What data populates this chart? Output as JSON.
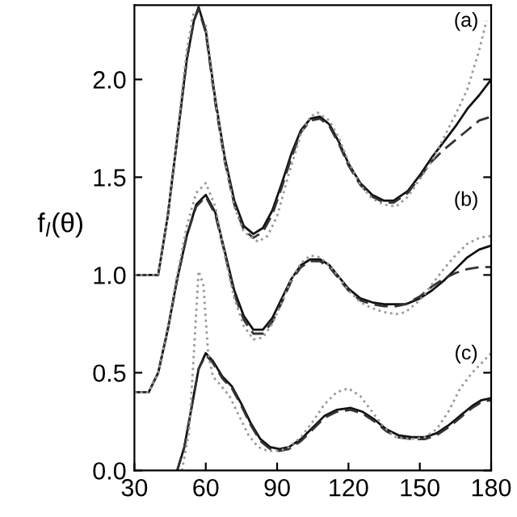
{
  "chart_data": {
    "type": "line",
    "ylabel": "f$_{l}$(θ)",
    "xlim": [
      30,
      180
    ],
    "xticks": [
      30,
      60,
      90,
      120,
      150,
      180
    ],
    "ylim": [
      0,
      2.38
    ],
    "yticks": [
      {
        "value": 0,
        "label": "0.0"
      },
      0.5,
      {
        "value": 1,
        "label": "1.0"
      },
      1.5,
      {
        "value": 2,
        "label": "2.0"
      }
    ],
    "grid": false,
    "legend": false,
    "marker": "none",
    "series": [
      {
        "color": "#111111",
        "line_style": "solid",
        "x": [
          30,
          40,
          44,
          48,
          52,
          55,
          57,
          60,
          64,
          68,
          72,
          76,
          80,
          84,
          88,
          92,
          96,
          100,
          104,
          108,
          112,
          116,
          120,
          125,
          130,
          135,
          139,
          145,
          150,
          155,
          160,
          165,
          170,
          175,
          180
        ],
        "values": [
          1.0,
          1.0,
          1.3,
          1.7,
          2.1,
          2.3,
          2.37,
          2.25,
          1.9,
          1.6,
          1.38,
          1.25,
          1.21,
          1.24,
          1.33,
          1.47,
          1.62,
          1.74,
          1.8,
          1.81,
          1.77,
          1.68,
          1.57,
          1.47,
          1.41,
          1.38,
          1.38,
          1.43,
          1.51,
          1.6,
          1.68,
          1.76,
          1.85,
          1.92,
          2.0
        ]
      },
      {
        "color": "#333333",
        "line_style": "dashed",
        "x": [
          30,
          40,
          44,
          48,
          52,
          55,
          57,
          60,
          64,
          68,
          72,
          76,
          80,
          84,
          88,
          92,
          96,
          100,
          104,
          108,
          112,
          116,
          120,
          125,
          130,
          135,
          139,
          145,
          150,
          155,
          160,
          165,
          170,
          175,
          180
        ],
        "values": [
          1.0,
          1.0,
          1.3,
          1.7,
          2.1,
          2.3,
          2.36,
          2.24,
          1.88,
          1.58,
          1.36,
          1.23,
          1.19,
          1.22,
          1.31,
          1.45,
          1.6,
          1.73,
          1.79,
          1.8,
          1.76,
          1.67,
          1.56,
          1.46,
          1.4,
          1.37,
          1.37,
          1.42,
          1.5,
          1.58,
          1.64,
          1.69,
          1.74,
          1.79,
          1.81
        ]
      },
      {
        "color": "#999999",
        "line_style": "dotted",
        "x": [
          30,
          40,
          44,
          48,
          52,
          55,
          57,
          60,
          64,
          68,
          72,
          76,
          82,
          86,
          90,
          95,
          100,
          104,
          107,
          112,
          116,
          120,
          125,
          130,
          135,
          140,
          145,
          150,
          155,
          160,
          165,
          170,
          175,
          178
        ],
        "values": [
          1.0,
          1.0,
          1.3,
          1.72,
          2.15,
          2.35,
          null,
          2.28,
          1.9,
          1.58,
          1.35,
          1.22,
          1.17,
          1.2,
          1.3,
          1.52,
          1.72,
          1.81,
          1.83,
          1.79,
          1.7,
          1.58,
          1.46,
          1.39,
          1.36,
          1.35,
          1.4,
          1.49,
          1.58,
          1.7,
          1.82,
          1.95,
          2.15,
          2.3
        ]
      },
      {
        "color": "#111111",
        "line_style": "solid",
        "x": [
          30,
          36,
          40,
          44,
          48,
          52,
          56,
          60,
          64,
          68,
          72,
          76,
          80,
          84,
          88,
          92,
          96,
          100,
          104,
          108,
          112,
          116,
          120,
          125,
          130,
          135,
          140,
          144,
          150,
          155,
          160,
          165,
          170,
          175,
          180
        ],
        "values": [
          0.4,
          0.4,
          0.5,
          0.72,
          0.98,
          1.2,
          1.36,
          1.41,
          1.32,
          1.12,
          0.92,
          0.79,
          0.72,
          0.72,
          0.78,
          0.88,
          0.98,
          1.05,
          1.08,
          1.08,
          1.05,
          0.99,
          0.93,
          0.88,
          0.86,
          0.85,
          0.85,
          0.85,
          0.88,
          0.92,
          0.97,
          1.03,
          1.09,
          1.13,
          1.15
        ]
      },
      {
        "color": "#333333",
        "line_style": "dashed",
        "x": [
          30,
          36,
          40,
          44,
          48,
          52,
          56,
          60,
          64,
          68,
          72,
          76,
          80,
          84,
          88,
          92,
          96,
          100,
          104,
          108,
          112,
          116,
          120,
          125,
          130,
          135,
          140,
          144,
          150,
          155,
          160,
          165,
          170,
          175,
          180
        ],
        "values": [
          0.4,
          0.4,
          0.5,
          0.72,
          0.98,
          1.2,
          1.35,
          1.4,
          1.31,
          1.11,
          0.9,
          0.77,
          0.7,
          0.7,
          0.76,
          0.86,
          0.97,
          1.04,
          1.07,
          1.07,
          1.04,
          0.98,
          0.92,
          0.87,
          0.85,
          0.84,
          0.84,
          0.85,
          0.89,
          0.94,
          0.98,
          1.01,
          1.03,
          1.04,
          1.04
        ]
      },
      {
        "color": "#999999",
        "line_style": "dotted",
        "x": [
          30,
          36,
          40,
          44,
          48,
          52,
          56,
          60,
          64,
          68,
          72,
          76,
          80,
          84,
          88,
          92,
          96,
          100,
          104,
          108,
          112,
          116,
          120,
          125,
          130,
          135,
          140,
          144,
          150,
          155,
          160,
          165,
          170,
          175,
          180
        ],
        "values": [
          0.4,
          0.4,
          0.5,
          0.73,
          1.0,
          1.25,
          1.42,
          1.47,
          1.35,
          1.1,
          0.88,
          0.74,
          0.67,
          0.68,
          0.75,
          0.86,
          0.98,
          1.06,
          1.1,
          1.09,
          1.05,
          0.99,
          0.92,
          0.86,
          0.83,
          0.81,
          0.8,
          0.81,
          0.87,
          0.95,
          1.03,
          1.1,
          1.16,
          1.19,
          1.2
        ]
      },
      {
        "color": "#111111",
        "line_style": "solid",
        "x": [
          48,
          51,
          54,
          57,
          60,
          63,
          67,
          71,
          75,
          79,
          83,
          87,
          91,
          95,
          100,
          105,
          110,
          115,
          121,
          126,
          131,
          136,
          141,
          147,
          152,
          157,
          162,
          167,
          172,
          176,
          180
        ],
        "values": [
          0.0,
          0.12,
          0.32,
          0.52,
          0.6,
          0.56,
          0.48,
          0.43,
          0.34,
          0.24,
          0.16,
          0.12,
          0.11,
          0.12,
          0.16,
          0.22,
          0.28,
          0.31,
          0.32,
          0.3,
          0.26,
          0.21,
          0.18,
          0.17,
          0.17,
          0.19,
          0.23,
          0.28,
          0.33,
          0.36,
          0.37
        ]
      },
      {
        "color": "#333333",
        "line_style": "dashed",
        "x": [
          48,
          51,
          54,
          57,
          60,
          63,
          67,
          71,
          75,
          79,
          83,
          87,
          91,
          95,
          100,
          105,
          110,
          115,
          121,
          126,
          131,
          136,
          141,
          147,
          152,
          157,
          162,
          167,
          172,
          176,
          180
        ],
        "values": [
          0.0,
          0.12,
          0.32,
          0.52,
          0.59,
          0.55,
          0.47,
          0.42,
          0.33,
          0.23,
          0.15,
          0.11,
          0.1,
          0.11,
          0.15,
          0.21,
          0.27,
          0.3,
          0.31,
          0.29,
          0.25,
          0.2,
          0.17,
          0.16,
          0.16,
          0.18,
          0.22,
          0.27,
          0.32,
          0.35,
          0.36
        ]
      },
      {
        "color": "#999999",
        "line_style": "dotted",
        "x": [
          50,
          53,
          55,
          57,
          59,
          61,
          63,
          66,
          70,
          74,
          78,
          82,
          86,
          91,
          95,
          100,
          105,
          110,
          115,
          120,
          125,
          130,
          135,
          140,
          146,
          152,
          157,
          162,
          167,
          172,
          176,
          180
        ],
        "values": [
          0.0,
          0.2,
          0.6,
          1.02,
          0.95,
          0.6,
          0.48,
          0.44,
          0.38,
          0.28,
          0.18,
          0.12,
          0.1,
          0.1,
          0.12,
          0.17,
          0.25,
          0.34,
          0.4,
          0.42,
          0.38,
          0.3,
          0.22,
          0.17,
          0.16,
          0.17,
          0.21,
          0.3,
          0.42,
          0.5,
          0.55,
          0.6
        ]
      }
    ],
    "annotations": [
      "(a)",
      "(b)",
      "(c)"
    ]
  }
}
